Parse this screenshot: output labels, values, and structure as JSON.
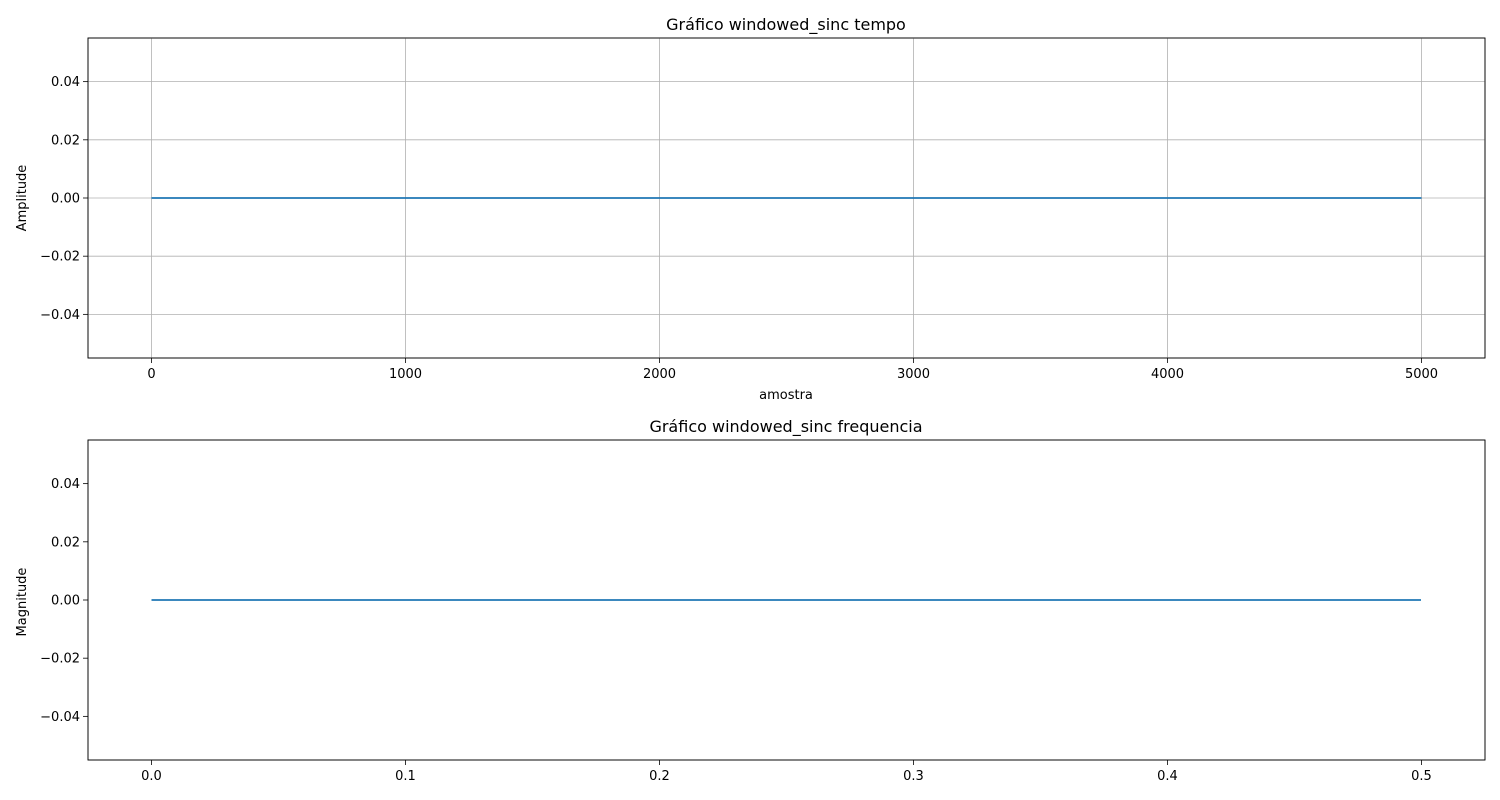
{
  "chart_data": [
    {
      "type": "line",
      "title": "Gráfico windowed_sinc tempo",
      "xlabel": "amostra",
      "ylabel": "Amplitude",
      "xlim": [
        -250,
        5250
      ],
      "ylim": [
        -0.055,
        0.055
      ],
      "xticks": [
        0,
        1000,
        2000,
        3000,
        4000,
        5000
      ],
      "xtick_labels": [
        "0",
        "1000",
        "2000",
        "3000",
        "4000",
        "5000"
      ],
      "yticks": [
        -0.04,
        -0.02,
        0.0,
        0.02,
        0.04
      ],
      "ytick_labels": [
        "−0.04",
        "−0.02",
        "0.00",
        "0.02",
        "0.04"
      ],
      "grid": true,
      "series": [
        {
          "color": "#1f77b4",
          "x": [
            0,
            5000
          ],
          "y": [
            0.0,
            0.0
          ]
        }
      ]
    },
    {
      "type": "line",
      "title": "Gráfico windowed_sinc frequencia",
      "xlabel": "",
      "ylabel": "Magnitude",
      "xlim": [
        -0.025,
        0.525
      ],
      "ylim": [
        -0.055,
        0.055
      ],
      "xticks": [
        0.0,
        0.1,
        0.2,
        0.3,
        0.4,
        0.5
      ],
      "xtick_labels": [
        "0.0",
        "0.1",
        "0.2",
        "0.3",
        "0.4",
        "0.5"
      ],
      "yticks": [
        -0.04,
        -0.02,
        0.0,
        0.02,
        0.04
      ],
      "ytick_labels": [
        "−0.04",
        "−0.02",
        "0.00",
        "0.02",
        "0.04"
      ],
      "grid": false,
      "series": [
        {
          "color": "#1f77b4",
          "x": [
            0.0,
            0.4998
          ],
          "y": [
            0.0,
            0.0
          ]
        }
      ]
    }
  ]
}
